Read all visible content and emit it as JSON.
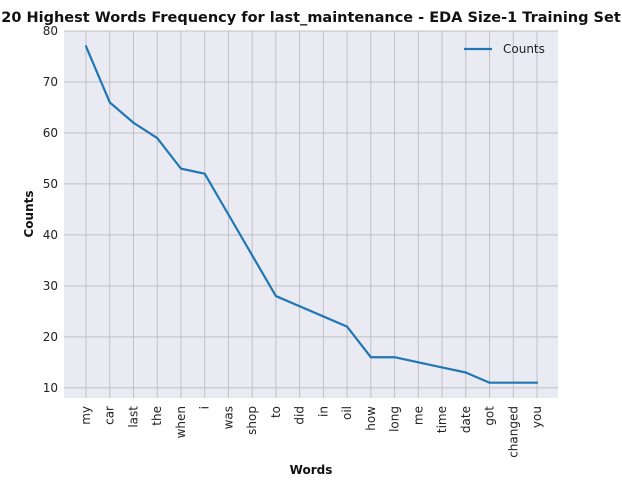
{
  "chart_data": {
    "type": "line",
    "title": "20 Highest Words Frequency for last_maintenance - EDA Size-1 Training Set",
    "xlabel": "Words",
    "ylabel": "Counts",
    "categories": [
      "my",
      "car",
      "last",
      "the",
      "when",
      "i",
      "was",
      "shop",
      "to",
      "did",
      "in",
      "oil",
      "how",
      "long",
      "me",
      "time",
      "date",
      "got",
      "changed",
      "you"
    ],
    "series": [
      {
        "name": "Counts",
        "values": [
          77,
          66,
          62,
          59,
          53,
          52,
          44,
          36,
          28,
          26,
          24,
          22,
          16,
          16,
          15,
          14,
          13,
          11,
          11,
          11
        ]
      }
    ],
    "ylim": [
      8,
      80
    ],
    "yticks": [
      10,
      20,
      30,
      40,
      50,
      60,
      70,
      80
    ],
    "grid": true,
    "legend_position": "top-right",
    "colors": {
      "line": "#1f77b4",
      "plot_background": "#eaeaf2",
      "grid": "#c0c0c6"
    }
  }
}
